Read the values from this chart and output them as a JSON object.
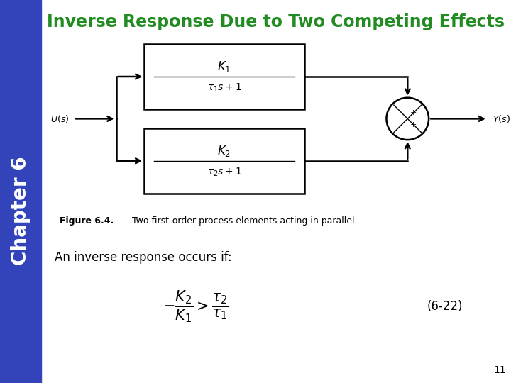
{
  "title": "Inverse Response Due to Two Competing Effects",
  "title_color": "#228B22",
  "title_fontsize": 17,
  "sidebar_color": "#3344BB",
  "sidebar_text": "Chapter 6",
  "sidebar_text_color": "white",
  "sidebar_fontsize": 20,
  "bg_color": "white",
  "figure_caption_bold": "Figure 6.4.",
  "figure_caption_rest": "   Two first-order process elements acting in parallel.",
  "body_text": "An inverse response occurs if:",
  "page_number": "11",
  "eq_number": "(6-22)"
}
